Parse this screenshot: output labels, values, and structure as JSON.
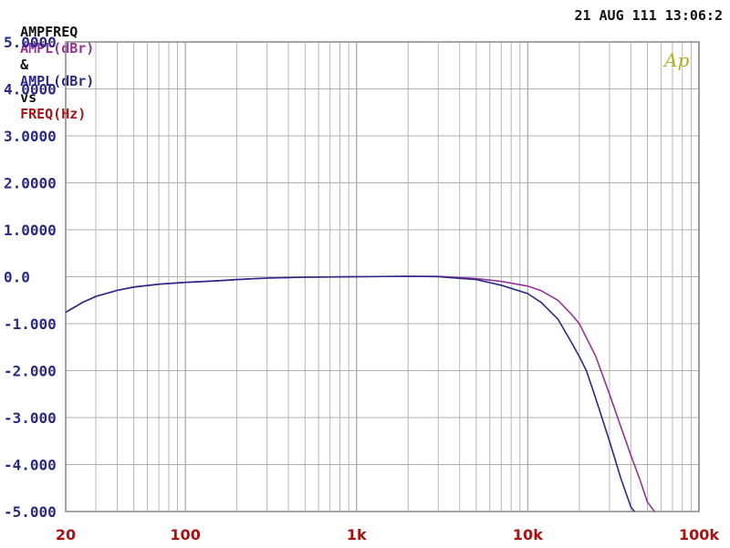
{
  "header": {
    "prefix": "AMPFREQ",
    "ylabel_a": "AMPL(dBr)",
    "amp": "&",
    "ylabel_b": "AMPL(dBr)",
    "vs": "vs",
    "xlabel": "FREQ(Hz)",
    "timestamp": "21 AUG 111 13:06:2",
    "colors": {
      "prefix": "#111111",
      "series_a": "#993399",
      "series_b": "#2a2a88",
      "xlabel": "#aa1111"
    }
  },
  "logo": {
    "text": "Ap",
    "color": "#b5b020"
  },
  "chart_data": {
    "type": "line",
    "x_scale": "log",
    "xlim": [
      20,
      100000
    ],
    "ylim": [
      -5,
      5
    ],
    "grid": true,
    "x_tick_labels": [
      {
        "value": 20,
        "label": "20"
      },
      {
        "value": 100,
        "label": "100"
      },
      {
        "value": 1000,
        "label": "1k"
      },
      {
        "value": 10000,
        "label": "10k"
      },
      {
        "value": 100000,
        "label": "100k"
      }
    ],
    "y_tick_labels": [
      {
        "value": 5,
        "label": "5.0000"
      },
      {
        "value": 4,
        "label": "4.0000"
      },
      {
        "value": 3,
        "label": "3.0000"
      },
      {
        "value": 2,
        "label": "2.0000"
      },
      {
        "value": 1,
        "label": "1.0000"
      },
      {
        "value": 0,
        "label": "0.0"
      },
      {
        "value": -1,
        "label": "-1.000"
      },
      {
        "value": -2,
        "label": "-2.000"
      },
      {
        "value": -3,
        "label": "-3.000"
      },
      {
        "value": -4,
        "label": "-4.000"
      },
      {
        "value": -5,
        "label": "-5.000"
      }
    ],
    "series": [
      {
        "color": "#993399",
        "points": [
          [
            20,
            -0.76
          ],
          [
            25,
            -0.55
          ],
          [
            30,
            -0.42
          ],
          [
            40,
            -0.29
          ],
          [
            50,
            -0.22
          ],
          [
            70,
            -0.16
          ],
          [
            100,
            -0.12
          ],
          [
            150,
            -0.09
          ],
          [
            200,
            -0.06
          ],
          [
            300,
            -0.03
          ],
          [
            500,
            -0.01
          ],
          [
            1000,
            0.0
          ],
          [
            2000,
            0.01
          ],
          [
            3000,
            0.01
          ],
          [
            5000,
            -0.04
          ],
          [
            7000,
            -0.1
          ],
          [
            10000,
            -0.2
          ],
          [
            12000,
            -0.3
          ],
          [
            15000,
            -0.5
          ],
          [
            18000,
            -0.8
          ],
          [
            20000,
            -1.0
          ],
          [
            25000,
            -1.7
          ],
          [
            30000,
            -2.5
          ],
          [
            35000,
            -3.2
          ],
          [
            40000,
            -3.8
          ],
          [
            45000,
            -4.3
          ],
          [
            50000,
            -4.8
          ],
          [
            55000,
            -5.0
          ]
        ]
      },
      {
        "color": "#2a2a88",
        "points": [
          [
            20,
            -0.76
          ],
          [
            25,
            -0.55
          ],
          [
            30,
            -0.42
          ],
          [
            40,
            -0.29
          ],
          [
            50,
            -0.22
          ],
          [
            70,
            -0.16
          ],
          [
            100,
            -0.12
          ],
          [
            150,
            -0.09
          ],
          [
            200,
            -0.06
          ],
          [
            300,
            -0.03
          ],
          [
            500,
            -0.01
          ],
          [
            1000,
            0.0
          ],
          [
            2000,
            0.01
          ],
          [
            3000,
            0.0
          ],
          [
            5000,
            -0.06
          ],
          [
            7000,
            -0.18
          ],
          [
            10000,
            -0.36
          ],
          [
            12000,
            -0.55
          ],
          [
            15000,
            -0.9
          ],
          [
            18000,
            -1.4
          ],
          [
            20000,
            -1.7
          ],
          [
            22000,
            -2.0
          ],
          [
            25000,
            -2.6
          ],
          [
            30000,
            -3.5
          ],
          [
            35000,
            -4.3
          ],
          [
            40000,
            -4.9
          ],
          [
            42000,
            -5.0
          ]
        ]
      }
    ]
  }
}
